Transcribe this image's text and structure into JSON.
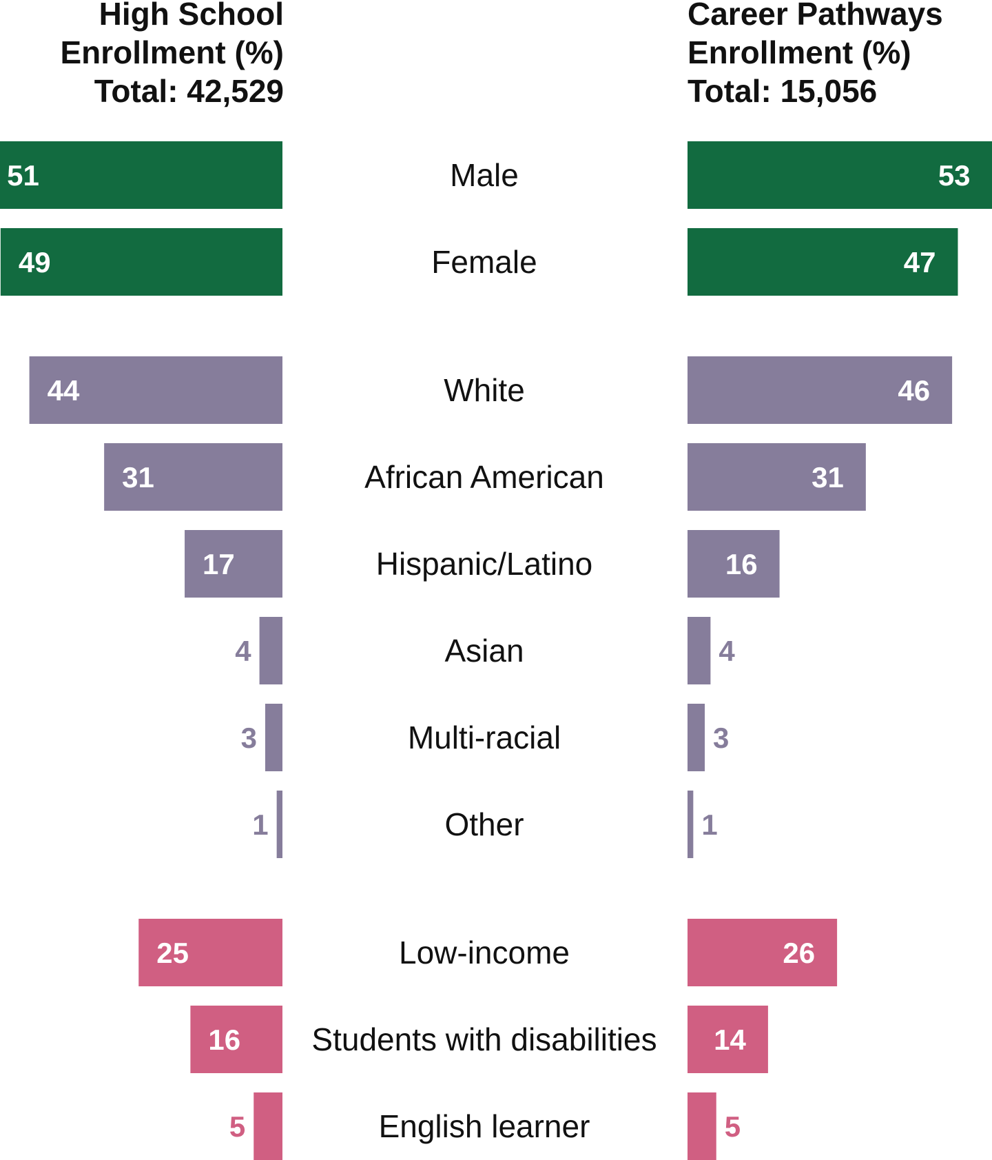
{
  "chart_data": {
    "type": "bar",
    "left_header": [
      "High School",
      "Enrollment (%)",
      "Total: 42,529"
    ],
    "right_header": [
      "Career Pathways",
      "Enrollment (%)",
      "Total: 15,056"
    ],
    "categories": [
      "Male",
      "Female",
      "White",
      "African American",
      "Hispanic/Latino",
      "Asian",
      "Multi-racial",
      "Other",
      "Low-income",
      "Students with disabilities",
      "English learner"
    ],
    "groups": [
      "gender",
      "gender",
      "race",
      "race",
      "race",
      "race",
      "race",
      "race",
      "other",
      "other",
      "other"
    ],
    "series": [
      {
        "name": "High School Enrollment (%)",
        "values": [
          51,
          49,
          44,
          31,
          17,
          4,
          3,
          1,
          25,
          16,
          5
        ]
      },
      {
        "name": "Career Pathways Enrollment (%)",
        "values": [
          53,
          47,
          46,
          31,
          16,
          4,
          3,
          1,
          26,
          14,
          5
        ]
      }
    ],
    "colors": {
      "gender": "#126b40",
      "race": "#867d9b",
      "other": "#d05f82"
    },
    "label_colors": {
      "gender": "#126b40",
      "race": "#867d9b",
      "other": "#d05f82",
      "inside": "#ffffff"
    }
  }
}
